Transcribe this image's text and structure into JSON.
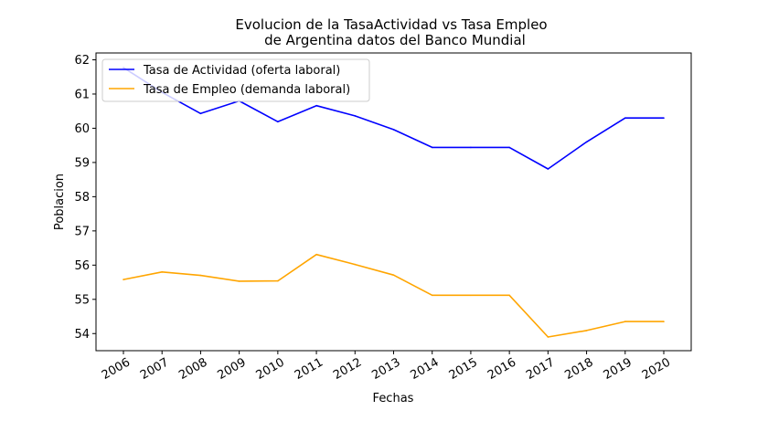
{
  "chart_data": {
    "type": "line",
    "title": "Evolucion de la TasaActividad vs Tasa Empleo\nde Argentina datos del Banco Mundial",
    "title_lines": [
      "Evolucion de la TasaActividad vs Tasa Empleo",
      "de Argentina datos del Banco Mundial"
    ],
    "xlabel": "Fechas",
    "ylabel": "Poblacion",
    "x": [
      "2006",
      "2007",
      "2008",
      "2009",
      "2010",
      "2011",
      "2012",
      "2013",
      "2014",
      "2015",
      "2016",
      "2017",
      "2018",
      "2019",
      "2020"
    ],
    "ylim": [
      53.5,
      62.2
    ],
    "yticks": [
      54,
      55,
      56,
      57,
      58,
      59,
      60,
      61,
      62
    ],
    "grid": false,
    "legend_position": "upper-left",
    "series": [
      {
        "name": "Tasa de Actividad (oferta laboral)",
        "color": "#0000ff",
        "values": [
          61.77,
          61.05,
          60.43,
          60.8,
          60.19,
          60.66,
          60.36,
          59.96,
          59.44,
          59.44,
          59.44,
          58.81,
          59.6,
          60.3,
          60.3
        ]
      },
      {
        "name": "Tasa de Empleo (demanda laboral)",
        "color": "#ffa500",
        "values": [
          55.58,
          55.8,
          55.7,
          55.53,
          55.54,
          56.31,
          56.02,
          55.71,
          55.12,
          55.12,
          55.12,
          53.9,
          54.09,
          54.35,
          54.35
        ]
      }
    ]
  }
}
